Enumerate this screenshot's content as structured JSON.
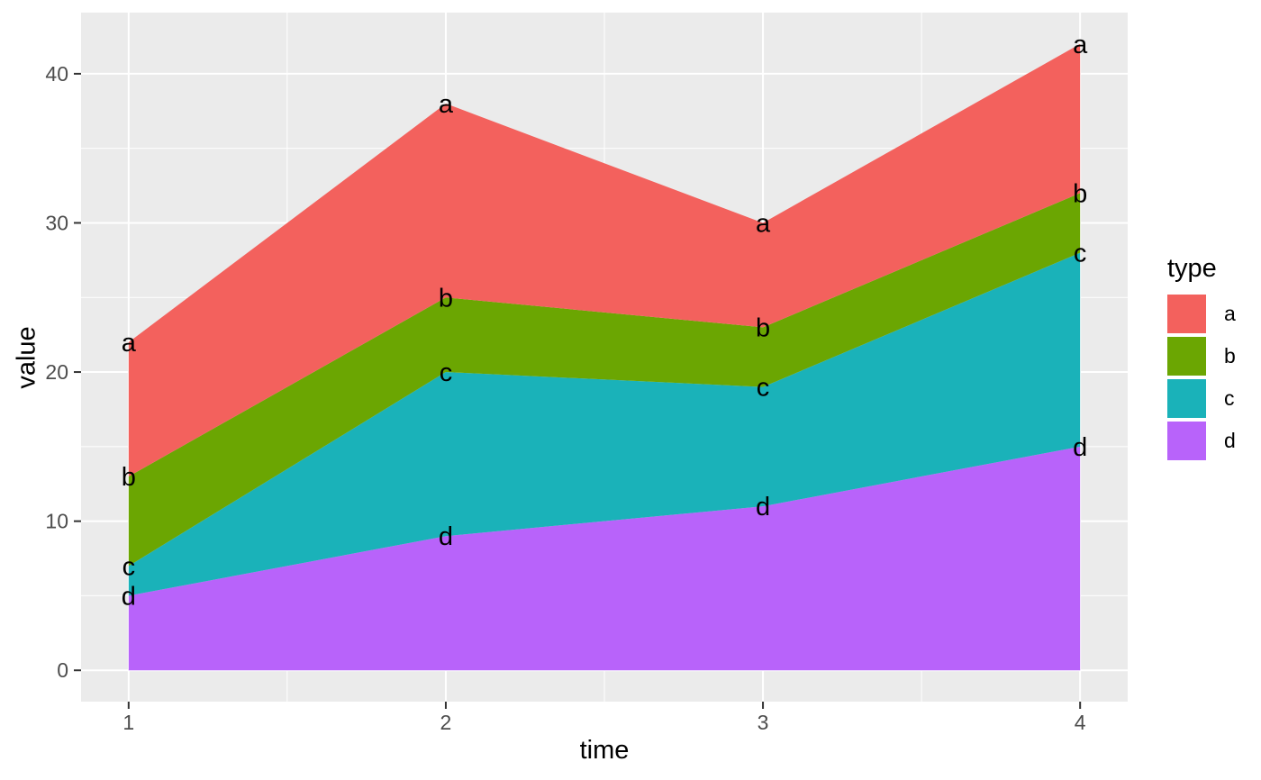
{
  "figure": {
    "x_axis_title": "time",
    "y_axis_title": "value"
  },
  "chart_data": {
    "type": "area",
    "stacked": true,
    "title": "",
    "xlabel": "time",
    "ylabel": "value",
    "x": [
      1,
      2,
      3,
      4
    ],
    "x_tick_labels": [
      "1",
      "2",
      "3",
      "4"
    ],
    "y_tick_values": [
      0,
      10,
      20,
      30,
      40
    ],
    "y_tick_labels": [
      "0",
      "10",
      "20",
      "30",
      "40"
    ],
    "x_minor_ticks": [
      1.5,
      2.5,
      3.5
    ],
    "y_minor_ticks": [
      5,
      15,
      25,
      35
    ],
    "xlim": [
      0.85,
      4.15
    ],
    "ylim": [
      -2.1,
      44.1
    ],
    "grid": true,
    "stack_bottom_to_top": [
      "d",
      "c",
      "b",
      "a"
    ],
    "series": [
      {
        "name": "d",
        "color": "#B863FA",
        "values": [
          5,
          9,
          11,
          15
        ],
        "cumulative_top": [
          5,
          9,
          11,
          15
        ]
      },
      {
        "name": "c",
        "color": "#1AB2B9",
        "values": [
          2,
          11,
          8,
          13
        ],
        "cumulative_top": [
          7,
          20,
          19,
          28
        ]
      },
      {
        "name": "b",
        "color": "#6BA602",
        "values": [
          6,
          5,
          4,
          4
        ],
        "cumulative_top": [
          13,
          25,
          23,
          32
        ]
      },
      {
        "name": "a",
        "color": "#F3615D",
        "values": [
          9,
          13,
          7,
          10
        ],
        "cumulative_top": [
          22,
          38,
          30,
          42
        ]
      }
    ],
    "point_labels_note": "each vertex labeled with its series letter at the cumulative stack top",
    "legend": {
      "title": "type",
      "position": "right",
      "entries": [
        {
          "label": "a",
          "color": "#F3615D"
        },
        {
          "label": "b",
          "color": "#6BA602"
        },
        {
          "label": "c",
          "color": "#1AB2B9"
        },
        {
          "label": "d",
          "color": "#B863FA"
        }
      ]
    },
    "style": {
      "panel_background": "#EBEBEB",
      "grid_color": "#FFFFFF",
      "tick_label_color": "#4D4D4D",
      "tick_mark_color": "#333333",
      "axis_title_color": "#000000",
      "point_label_color": "#000000"
    }
  }
}
